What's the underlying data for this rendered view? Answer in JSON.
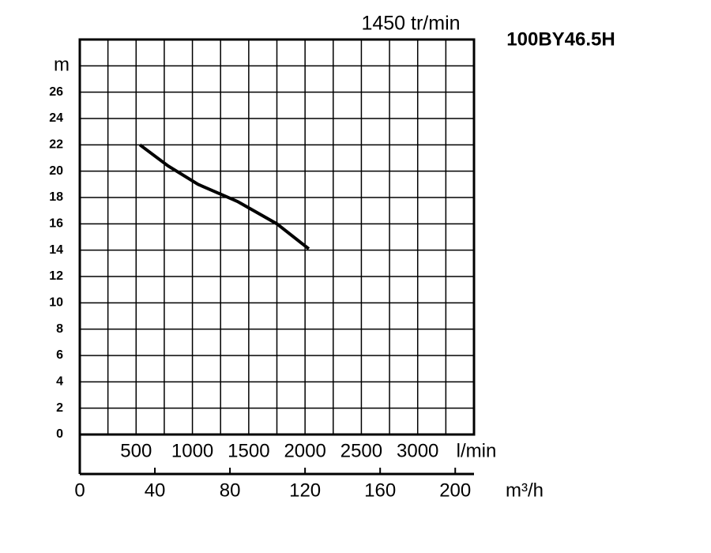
{
  "chart_data": {
    "type": "line",
    "title": "100BY46.5H",
    "subtitle": "1450 tr/min",
    "x_label": "m³/h",
    "x2_label": "l/min",
    "x": [
      32,
      47,
      63,
      84,
      105,
      122
    ],
    "series": [
      {
        "color": "#000000",
        "values": [
          22,
          20.4,
          19,
          17.7,
          16,
          14.1
        ]
      }
    ],
    "xlim": [
      0,
      210
    ],
    "xticks": [
      0,
      40,
      80,
      120,
      160,
      200
    ],
    "xgrid": [
      15,
      30,
      45,
      60,
      75,
      90,
      105,
      120,
      135,
      150,
      165,
      180,
      195
    ],
    "x2lim": [
      0,
      3500
    ],
    "x2ticks": [
      500,
      1000,
      1500,
      2000,
      2500,
      3000
    ],
    "ylim": [
      0,
      30
    ],
    "yticks": [
      0,
      2,
      4,
      6,
      8,
      10,
      12,
      14,
      16,
      18,
      20,
      22,
      24,
      26,
      {
        "value": 28,
        "label": "m"
      }
    ],
    "grid": true
  }
}
